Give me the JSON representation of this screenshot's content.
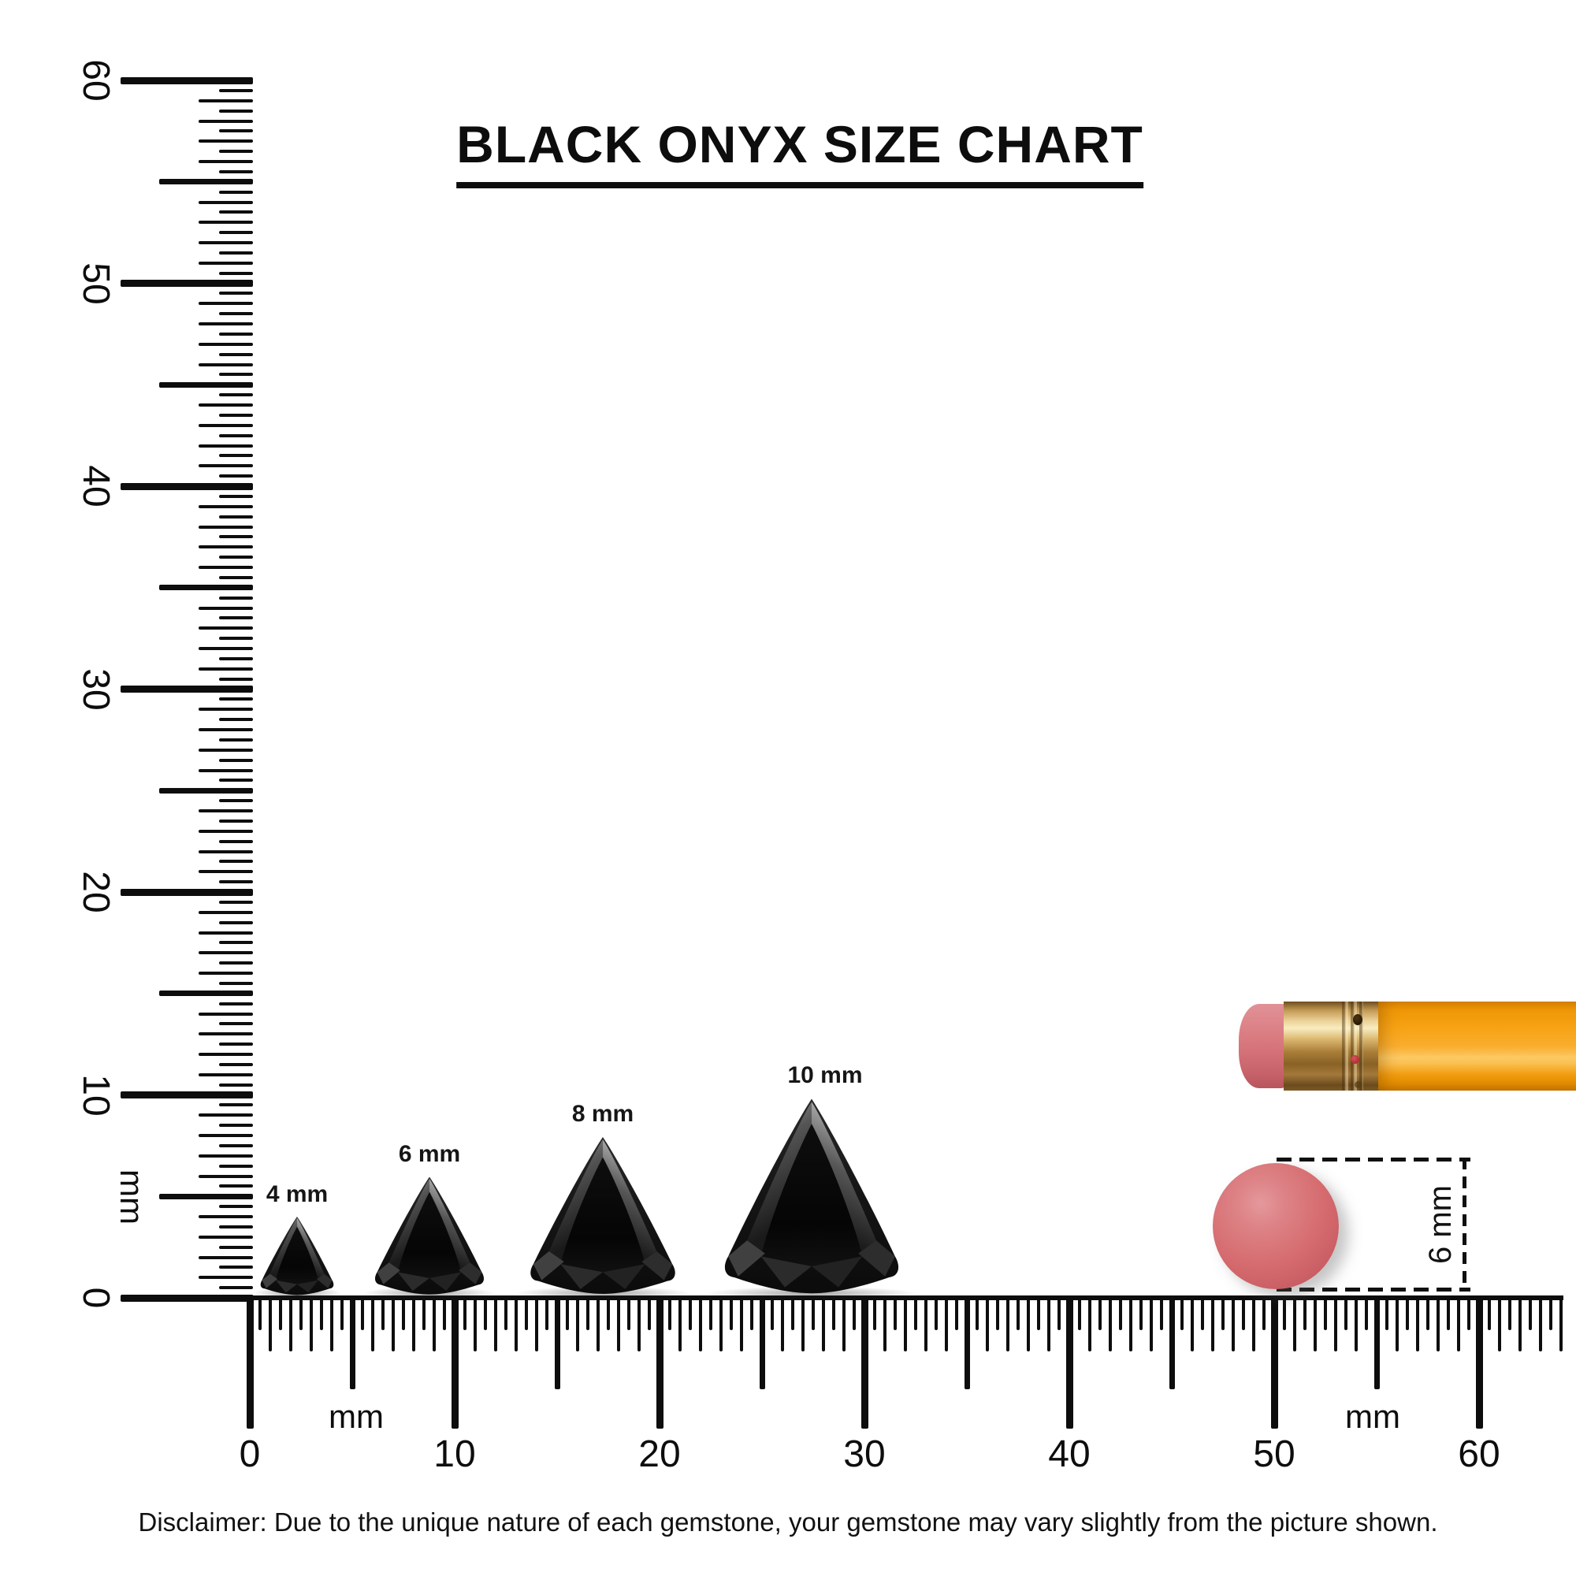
{
  "title": "BLACK ONYX SIZE CHART",
  "rulers": {
    "vertical": {
      "unit": "mm",
      "min_mm": 0,
      "max_mm": 60,
      "tick_step_mm": 0.5,
      "major_labels": [
        "0",
        "10",
        "20",
        "30",
        "40",
        "50",
        "60"
      ]
    },
    "horizontal": {
      "unit": "mm",
      "min_mm": 0,
      "max_mm": 64,
      "tick_step_mm": 0.5,
      "major_labels": [
        "0",
        "10",
        "20",
        "30",
        "40",
        "50",
        "60"
      ]
    }
  },
  "gems": [
    {
      "label": "4 mm",
      "size_mm": 4
    },
    {
      "label": "6 mm",
      "size_mm": 6
    },
    {
      "label": "8 mm",
      "size_mm": 8
    },
    {
      "label": "10 mm",
      "size_mm": 10
    }
  ],
  "reference": {
    "eraser_dot_label": "6 mm",
    "eraser_dot_color": "#d56b6e",
    "pencil_body_color": "#f7a41c",
    "pencil_ferrule_color": "#d9b572",
    "pencil_eraser_color": "#d97b80"
  },
  "ink_color": "#0d0d0d",
  "disclaimer": "Disclaimer: Due to the unique nature of each gemstone, your gemstone may vary slightly from the picture shown."
}
